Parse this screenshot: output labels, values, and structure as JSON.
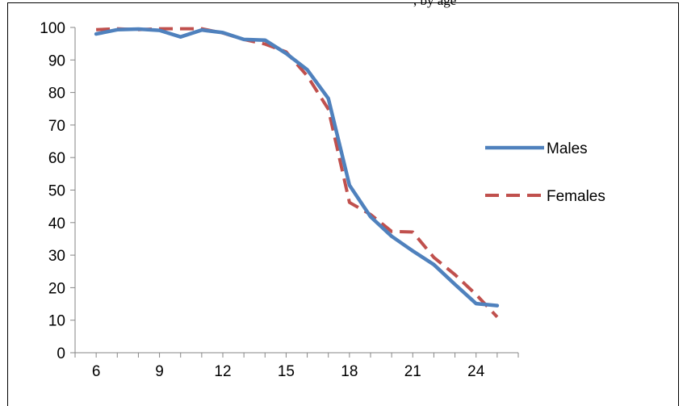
{
  "caption_fragment": ", by age",
  "chart_data": {
    "type": "line",
    "title": "",
    "xlabel": "",
    "ylabel": "",
    "x": [
      6,
      7,
      8,
      9,
      10,
      11,
      12,
      13,
      14,
      15,
      16,
      17,
      18,
      19,
      20,
      21,
      22,
      23,
      24,
      25
    ],
    "xlim": [
      5,
      26
    ],
    "xticks": [
      6,
      9,
      12,
      15,
      18,
      21,
      24
    ],
    "xtick_labels": [
      "6",
      "9",
      "12",
      "15",
      "18",
      "21",
      "24"
    ],
    "ylim": [
      0,
      100
    ],
    "yticks": [
      0,
      10,
      20,
      30,
      40,
      50,
      60,
      70,
      80,
      90,
      100
    ],
    "ytick_labels": [
      "0",
      "10",
      "20",
      "30",
      "40",
      "50",
      "60",
      "70",
      "80",
      "90",
      "100"
    ],
    "grid": false,
    "legend_position": "right",
    "series": [
      {
        "name": "Males",
        "color": "#4f81bd",
        "style": "solid",
        "values": [
          98,
          99.3,
          99.5,
          99.1,
          97.1,
          99.2,
          98.4,
          96.3,
          96.1,
          92,
          87,
          78.2,
          51.5,
          41.8,
          35.8,
          31.3,
          27.1,
          21,
          15.1,
          14.5
        ]
      },
      {
        "name": "Females",
        "color": "#c0504d",
        "style": "dashed",
        "values": [
          99.3,
          99.6,
          99.3,
          99.6,
          99.6,
          99.6,
          98.3,
          96.3,
          94.9,
          92.5,
          85.1,
          74.9,
          46.2,
          42.5,
          37.3,
          37.1,
          29.3,
          24,
          17.9,
          11
        ]
      }
    ]
  }
}
